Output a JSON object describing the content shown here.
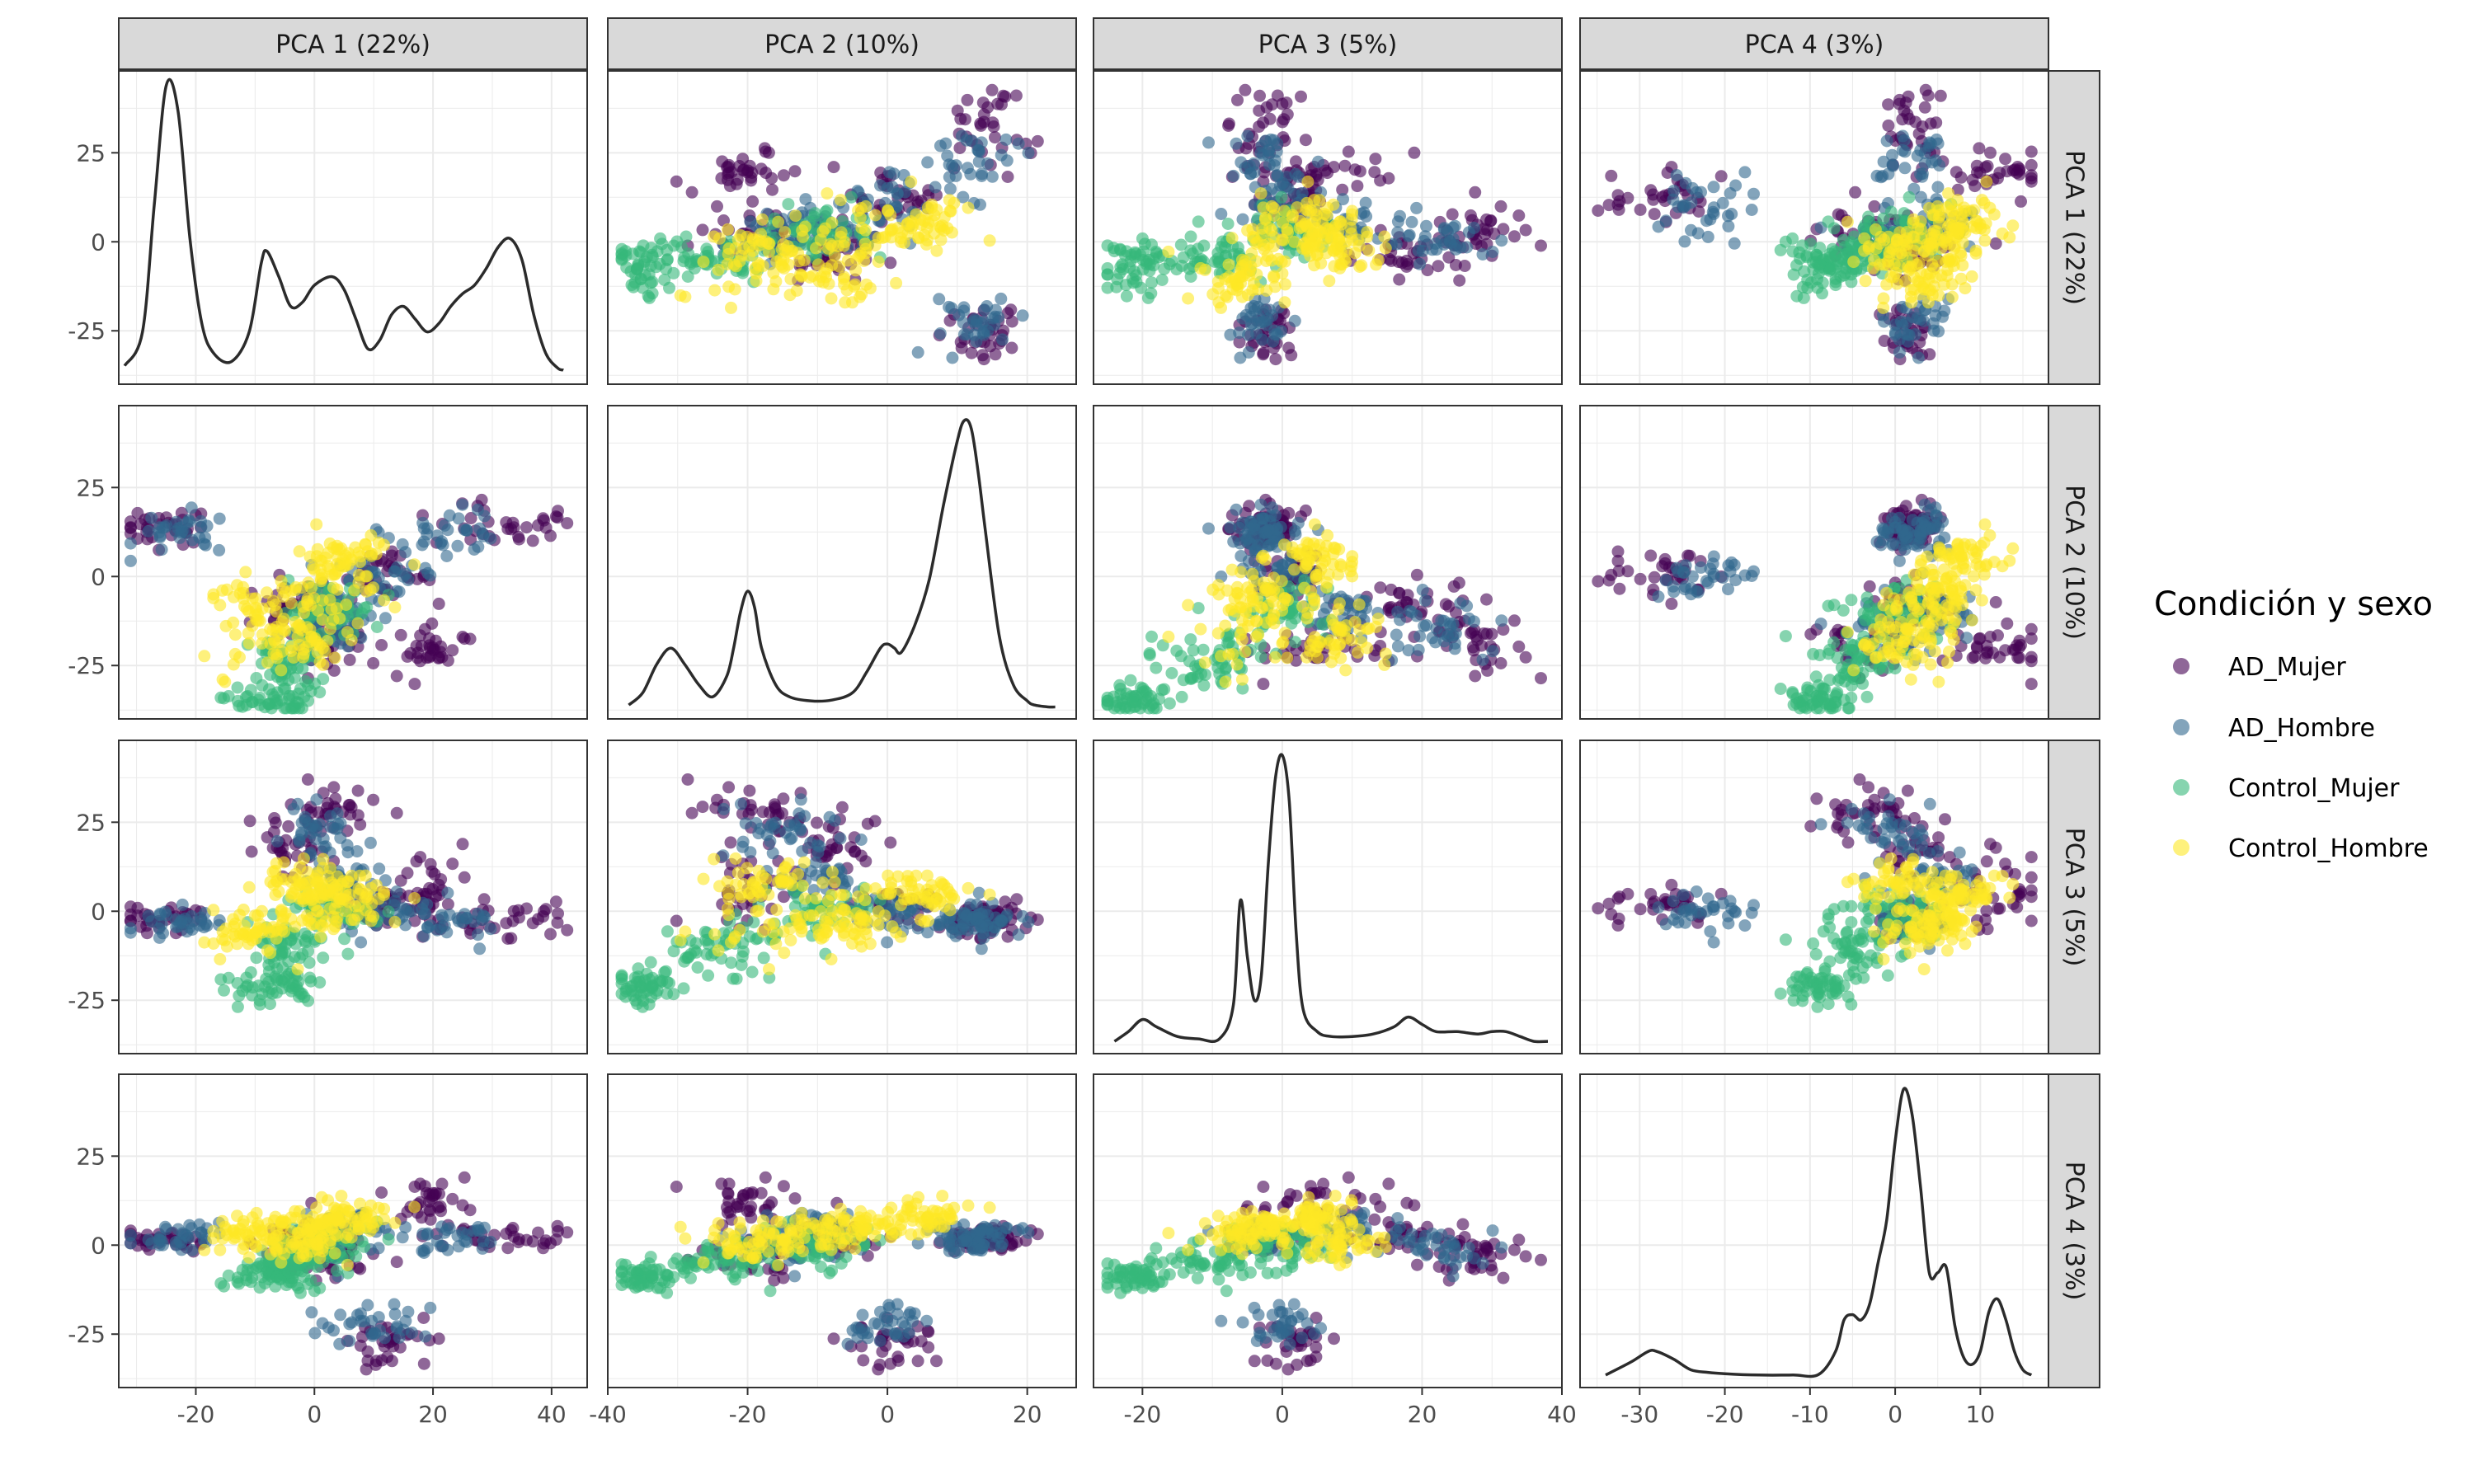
{
  "chart_data": {
    "type": "scatter",
    "layout": "pairs-matrix",
    "variables": [
      "PCA 1 (22%)",
      "PCA 2 (10%)",
      "PCA 3 (5%)",
      "PCA 4 (3%)"
    ],
    "legend": {
      "title": "Condición y sexo",
      "position": "right",
      "entries": [
        {
          "name": "AD_Mujer",
          "color": "#440154"
        },
        {
          "name": "AD_Hombre",
          "color": "#31688E"
        },
        {
          "name": "Control_Mujer",
          "color": "#35B779"
        },
        {
          "name": "Control_Hombre",
          "color": "#FDE725"
        }
      ]
    },
    "y_axis": {
      "ticks": [
        25,
        0,
        -25
      ],
      "tick_labels": [
        "25",
        "0",
        "-25"
      ],
      "ylim": [
        -40,
        48
      ]
    },
    "x_axes": [
      {
        "xlim": [
          -33,
          46
        ],
        "ticks": [
          -20,
          0,
          20,
          40
        ],
        "tick_labels": [
          "-20",
          "0",
          "20",
          "40"
        ]
      },
      {
        "xlim": [
          -40,
          27
        ],
        "ticks": [
          -40,
          -20,
          0,
          20
        ],
        "tick_labels": [
          "-40",
          "-20",
          "0",
          "20"
        ]
      },
      {
        "xlim": [
          -27,
          40
        ],
        "ticks": [
          -20,
          0,
          20,
          40
        ],
        "tick_labels": [
          "-20",
          "0",
          "20",
          "40"
        ]
      },
      {
        "xlim": [
          -37,
          18
        ],
        "ticks": [
          -30,
          -20,
          -10,
          0,
          10
        ],
        "tick_labels": [
          "-30",
          "-20",
          "-10",
          "0",
          "10"
        ]
      }
    ],
    "densities": [
      {
        "variable": "PCA 1 (22%)",
        "x": [
          -32,
          -29,
          -27,
          -25,
          -23,
          -21,
          -19,
          -17,
          -14,
          -11,
          -9,
          -8,
          -6,
          -4,
          -2,
          0,
          3,
          5,
          7,
          9,
          11,
          13,
          15,
          17,
          19,
          21,
          23,
          25,
          27,
          29,
          31,
          33,
          35,
          37,
          39,
          41,
          42
        ],
        "y": [
          2,
          10,
          40,
          68,
          62,
          32,
          12,
          5,
          3,
          10,
          26,
          29,
          23,
          16,
          17,
          21,
          23,
          20,
          13,
          6,
          8,
          14,
          16,
          13,
          10,
          12,
          16,
          19,
          21,
          25,
          30,
          32,
          27,
          14,
          5,
          1.5,
          1
        ]
      },
      {
        "variable": "PCA 2 (10%)",
        "x": [
          -37,
          -35,
          -33,
          -31,
          -29,
          -27,
          -25,
          -23,
          -22,
          -21,
          -20,
          -19,
          -18,
          -16,
          -14,
          -11,
          -8,
          -5,
          -3,
          -1,
          0,
          1,
          2,
          4,
          6,
          8,
          10,
          11,
          12,
          13,
          14,
          16,
          18,
          20,
          21,
          23,
          24
        ],
        "y": [
          1,
          4,
          11,
          15,
          11,
          6,
          3,
          8,
          15,
          24,
          29,
          25,
          15,
          6,
          3,
          2,
          2.2,
          4,
          9,
          15,
          16,
          15,
          14,
          21,
          32,
          50,
          66,
          71,
          69,
          58,
          44,
          18,
          6,
          2,
          1,
          0.5,
          0.5
        ]
      },
      {
        "variable": "PCA 3 (5%)",
        "x": [
          -24,
          -22,
          -20,
          -18,
          -15,
          -12,
          -9,
          -7,
          -6,
          -5,
          -4,
          -3,
          -2,
          -1,
          0,
          1,
          2,
          3,
          5,
          7,
          10,
          13,
          16,
          18,
          20,
          22,
          25,
          28,
          30,
          32,
          34,
          36,
          38
        ],
        "y": [
          1,
          5,
          10,
          7,
          3,
          2,
          2,
          16,
          59,
          36,
          18,
          28,
          74,
          109,
          119,
          100,
          45,
          14,
          5,
          3,
          3,
          4,
          7,
          11,
          8,
          5,
          5,
          4,
          5,
          5,
          3,
          1,
          1
        ]
      },
      {
        "variable": "PCA 4 (3%)",
        "x": [
          -34,
          -31,
          -29,
          -28,
          -26,
          -24,
          -22,
          -20,
          -16,
          -12,
          -9,
          -7,
          -6,
          -5,
          -4,
          -3,
          -2,
          -1,
          0,
          1,
          2,
          3,
          4,
          5,
          6,
          7,
          8,
          9,
          10,
          11,
          12,
          13,
          14,
          15,
          16
        ],
        "y": [
          1,
          6,
          10,
          10,
          7,
          3,
          2,
          1.5,
          1,
          1,
          1.2,
          10,
          22,
          24,
          22,
          28,
          44,
          60,
          90,
          110,
          100,
          72,
          40,
          40,
          42,
          20,
          8,
          5,
          10,
          25,
          30,
          22,
          10,
          3,
          1
        ]
      }
    ],
    "scatter_note": "Off-diagonal panels plot PCA column variable (x) against PCA row variable (y) for each of the four groups; positions are rendered from a summary of each group's point cloud."
  }
}
